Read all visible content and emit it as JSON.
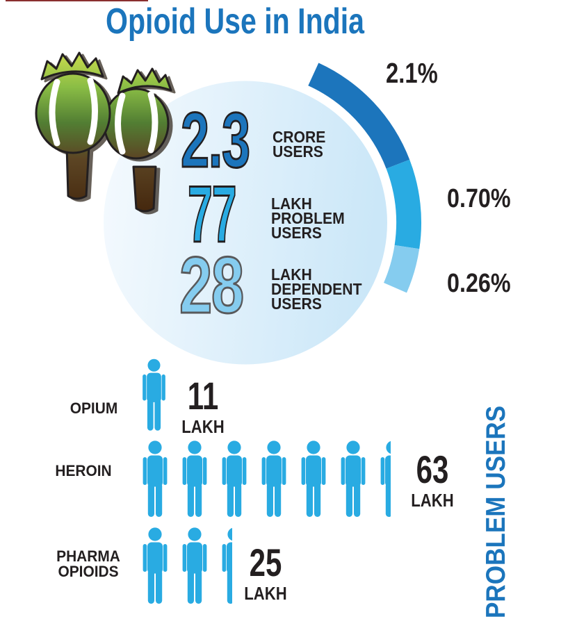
{
  "title": {
    "text": "Opioid Use in India"
  },
  "colors": {
    "title_blue": "#1B75BC",
    "arc_dark": "#1C75BC",
    "arc_medium": "#29ABE2",
    "arc_light": "#85CCEF",
    "person_blue": "#29ABE2",
    "circle_left": "#F5FAFE",
    "circle_right": "#CBE7F8",
    "text_black": "#231F20"
  },
  "hero": {
    "stats": [
      {
        "number": "2.3",
        "label": "CRORE\nUSERS"
      },
      {
        "number": "77",
        "label": "LAKH\nPROBLEM\nUSERS"
      },
      {
        "number": "28",
        "label": "LAKH\nDEPENDENT\nUSERS"
      }
    ],
    "arc_labels": [
      "2.1%",
      "0.70%",
      "0.26%"
    ]
  },
  "rows": [
    {
      "label": "OPIUM",
      "number": "11",
      "unit": "LAKH",
      "icons_full": 1,
      "icons_half": 0
    },
    {
      "label": "HEROIN",
      "number": "63",
      "unit": "LAKH",
      "icons_full": 6,
      "icons_half": 1
    },
    {
      "label": "PHARMA\nOPIOIDS",
      "number": "25",
      "unit": "LAKH",
      "icons_full": 2,
      "icons_half": 1
    }
  ],
  "side_label": "PROBLEM USERS",
  "chart_data": [
    {
      "type": "pie",
      "title": "Opioid Use in India",
      "style": "partial outer arc ring around a filled circle, labels inside circle",
      "slices": [
        {
          "label": "CRORE USERS",
          "count": 2.3,
          "count_unit": "CRORE",
          "pct_label": "2.1%",
          "value_pct": 2.1,
          "color": "#1C75BC"
        },
        {
          "label": "LAKH PROBLEM USERS",
          "count": 77,
          "count_unit": "LAKH",
          "pct_label": "0.70%",
          "value_pct": 0.7,
          "color": "#29ABE2"
        },
        {
          "label": "LAKH DEPENDENT USERS",
          "count": 28,
          "count_unit": "LAKH",
          "pct_label": "0.26%",
          "value_pct": 0.26,
          "color": "#85CCEF"
        }
      ],
      "legend_position": "inside-circle"
    },
    {
      "type": "bar",
      "title": "PROBLEM USERS",
      "categories": [
        "OPIUM",
        "HEROIN",
        "PHARMA OPIOIDS"
      ],
      "values": [
        11,
        63,
        25
      ],
      "unit": "LAKH",
      "style": "pictogram rows, one person icon per 10 lakh",
      "icon_counts": [
        1,
        6.5,
        2.5
      ]
    }
  ]
}
